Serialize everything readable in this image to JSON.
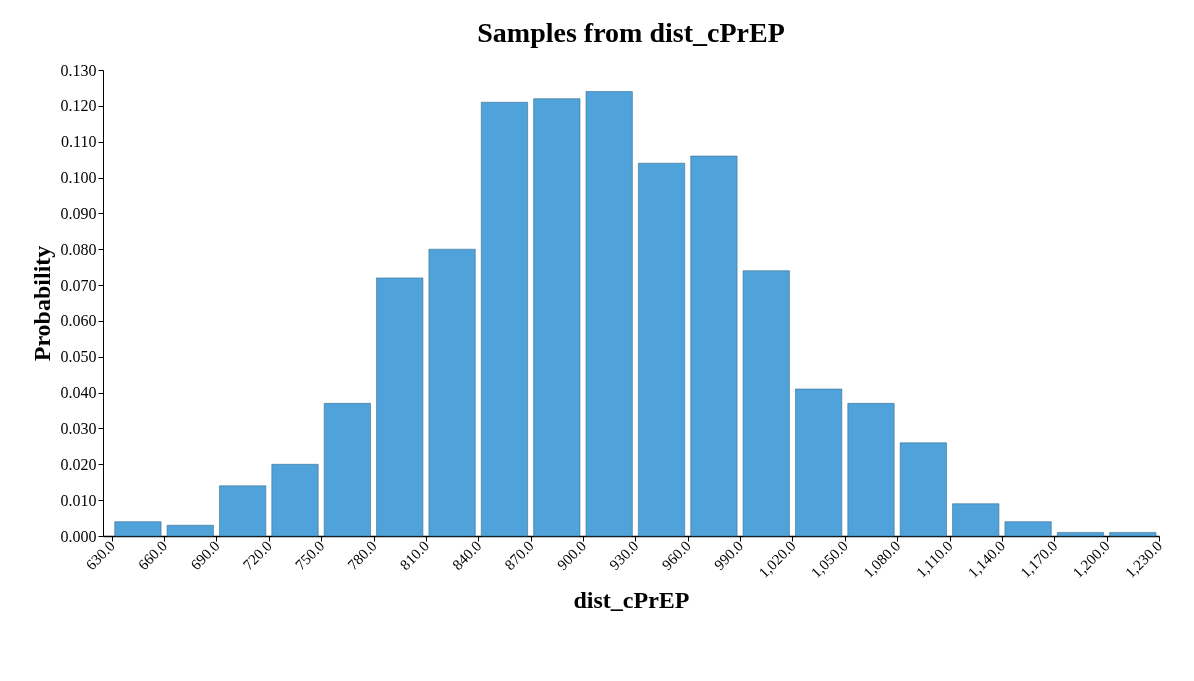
{
  "chart_data": {
    "type": "histogram",
    "title": "Samples from dist_cPrEP",
    "xlabel": "dist_cPrEP",
    "ylabel": "Probability",
    "bins": [
      630,
      660,
      690,
      720,
      750,
      780,
      810,
      840,
      870,
      900,
      930,
      960,
      990,
      1020,
      1050,
      1080,
      1110,
      1140,
      1170,
      1200,
      1230
    ],
    "values": [
      0.004,
      0.003,
      0.014,
      0.02,
      0.037,
      0.072,
      0.08,
      0.121,
      0.122,
      0.124,
      0.104,
      0.106,
      0.074,
      0.041,
      0.037,
      0.026,
      0.009,
      0.004,
      0.001,
      0.001
    ],
    "color": "#4fa3da",
    "xlim": [
      625,
      1230
    ],
    "xticks": [
      {
        "value": 630,
        "label": "630.0"
      },
      {
        "value": 660,
        "label": "660.0"
      },
      {
        "value": 690,
        "label": "690.0"
      },
      {
        "value": 720,
        "label": "720.0"
      },
      {
        "value": 750,
        "label": "750.0"
      },
      {
        "value": 780,
        "label": "780.0"
      },
      {
        "value": 810,
        "label": "810.0"
      },
      {
        "value": 840,
        "label": "840.0"
      },
      {
        "value": 870,
        "label": "870.0"
      },
      {
        "value": 900,
        "label": "900.0"
      },
      {
        "value": 930,
        "label": "930.0"
      },
      {
        "value": 960,
        "label": "960.0"
      },
      {
        "value": 990,
        "label": "990.0"
      },
      {
        "value": 1020,
        "label": "1,020.0"
      },
      {
        "value": 1050,
        "label": "1,050.0"
      },
      {
        "value": 1080,
        "label": "1,080.0"
      },
      {
        "value": 1110,
        "label": "1,110.0"
      },
      {
        "value": 1140,
        "label": "1,140.0"
      },
      {
        "value": 1170,
        "label": "1,170.0"
      },
      {
        "value": 1200,
        "label": "1,200.0"
      },
      {
        "value": 1230,
        "label": "1,230.0"
      }
    ],
    "ylim": [
      0,
      0.13
    ],
    "yticks": [
      {
        "value": 0,
        "label": "0.000"
      },
      {
        "value": 0.01,
        "label": "0.010"
      },
      {
        "value": 0.02,
        "label": "0.020"
      },
      {
        "value": 0.03,
        "label": "0.030"
      },
      {
        "value": 0.04,
        "label": "0.040"
      },
      {
        "value": 0.05,
        "label": "0.050"
      },
      {
        "value": 0.06,
        "label": "0.060"
      },
      {
        "value": 0.07,
        "label": "0.070"
      },
      {
        "value": 0.08,
        "label": "0.080"
      },
      {
        "value": 0.09,
        "label": "0.090"
      },
      {
        "value": 0.1,
        "label": "0.100"
      },
      {
        "value": 0.11,
        "label": "0.110"
      },
      {
        "value": 0.12,
        "label": "0.120"
      },
      {
        "value": 0.13,
        "label": "0.130"
      }
    ],
    "grid": false
  }
}
